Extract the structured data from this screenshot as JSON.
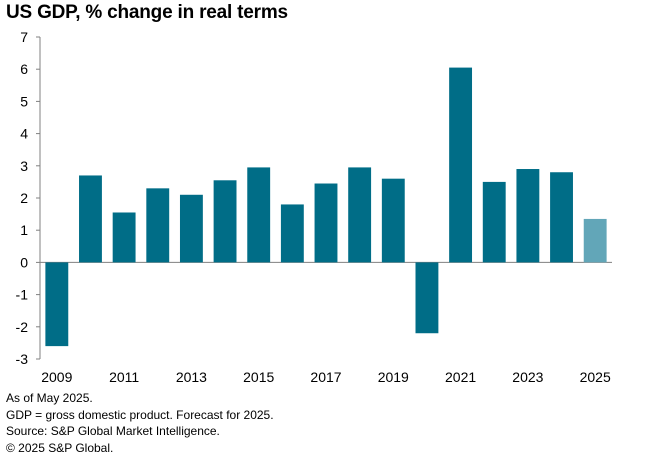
{
  "chart_data": {
    "type": "bar",
    "title": "US GDP, % change in real terms",
    "xlabel": "",
    "ylabel": "",
    "categories": [
      "2009",
      "2010",
      "2011",
      "2012",
      "2013",
      "2014",
      "2015",
      "2016",
      "2017",
      "2018",
      "2019",
      "2020",
      "2021",
      "2022",
      "2023",
      "2024",
      "2025"
    ],
    "x_tick_labels": [
      "2009",
      "2011",
      "2013",
      "2015",
      "2017",
      "2019",
      "2021",
      "2023",
      "2025"
    ],
    "values": [
      -2.6,
      2.7,
      1.55,
      2.3,
      2.1,
      2.55,
      2.95,
      1.8,
      2.45,
      2.95,
      2.6,
      -2.2,
      6.05,
      2.5,
      2.9,
      2.8,
      1.35
    ],
    "forecast_categories": [
      "2025"
    ],
    "y_tick_labels": [
      "7",
      "6",
      "5",
      "4",
      "3",
      "2",
      "1",
      "0",
      "-1",
      "-2",
      "-3"
    ],
    "ylim": [
      -3,
      7
    ],
    "grid": false,
    "legend": "none",
    "colors": {
      "actual": "#006d87",
      "forecast": "#62a6b8",
      "axis": "#808080"
    }
  },
  "footnotes": [
    "As of May 2025.",
    "GDP = gross domestic product. Forecast for 2025.",
    "Source: S&P Global Market Intelligence.",
    "© 2025 S&P Global."
  ]
}
